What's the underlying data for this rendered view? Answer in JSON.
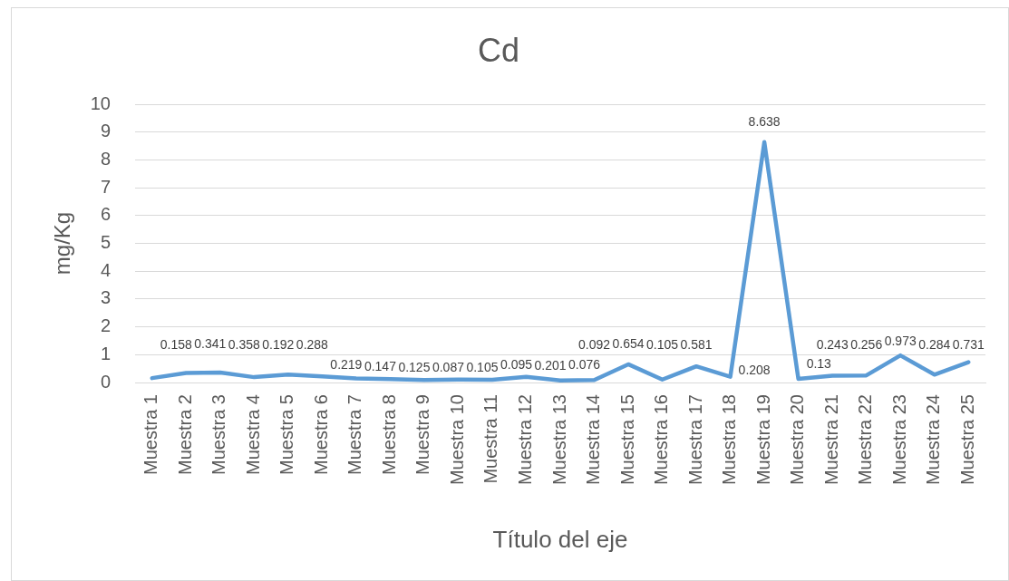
{
  "chart_data": {
    "type": "line",
    "title": "Cd",
    "xlabel": "Título del eje",
    "ylabel": "mg/Kg",
    "categories": [
      "Muestra 1",
      "Muestra 2",
      "Muestra 3",
      "Muestra 4",
      "Muestra 5",
      "Muestra 6",
      "Muestra 7",
      "Muestra 8",
      "Muestra 9",
      "Muestra 10",
      "Muestra 11",
      "Muestra 12",
      "Muestra 13",
      "Muestra 14",
      "Muestra 15",
      "Muestra 16",
      "Muestra 17",
      "Muestra 18",
      "Muestra 19",
      "Muestra 20",
      "Muestra 21",
      "Muestra 22",
      "Muestra 23",
      "Muestra 24",
      "Muestra 25"
    ],
    "series": [
      {
        "color": "#5b9bd5",
        "values": [
          0.158,
          0.341,
          0.358,
          0.192,
          0.288,
          0.219,
          0.147,
          0.125,
          0.087,
          0.105,
          0.095,
          0.201,
          0.076,
          0.092,
          0.654,
          0.105,
          0.581,
          0.208,
          8.638,
          0.13,
          0.243,
          0.256,
          0.973,
          0.284,
          0.731
        ]
      }
    ],
    "ylim": [
      0,
      10
    ],
    "yticks": [
      0,
      1,
      2,
      3,
      4,
      5,
      6,
      7,
      8,
      9,
      10
    ],
    "grid": "y",
    "marker": "none",
    "data_labels": true
  }
}
